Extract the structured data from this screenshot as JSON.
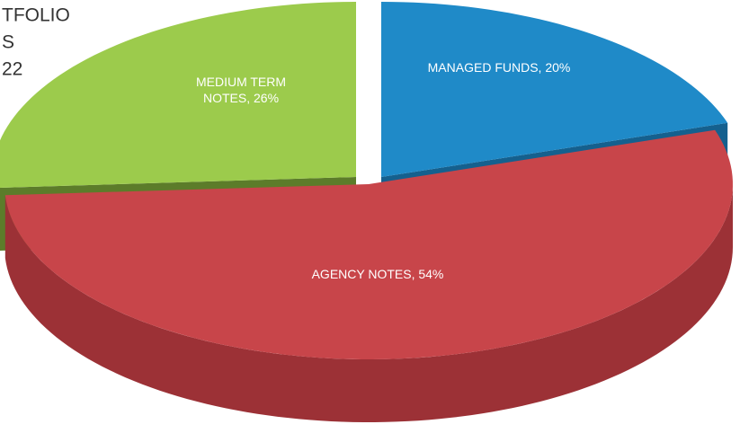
{
  "chart_data": {
    "type": "pie",
    "title_lines": [
      "TFOLIO",
      "S",
      "22"
    ],
    "value_labels": [
      "MANAGED FUNDS, 20%",
      "AGENCY NOTES, 54%",
      "MEDIUM TERM NOTES, 26%"
    ],
    "values": [
      20,
      54,
      26
    ],
    "colors": [
      "#1f8ac8",
      "#c8454a",
      "#9ccb4c"
    ],
    "side_colors": [
      "#15608e",
      "#9c3136",
      "#5c7c2a"
    ],
    "start_angle": 0,
    "direction": "clockwise"
  }
}
